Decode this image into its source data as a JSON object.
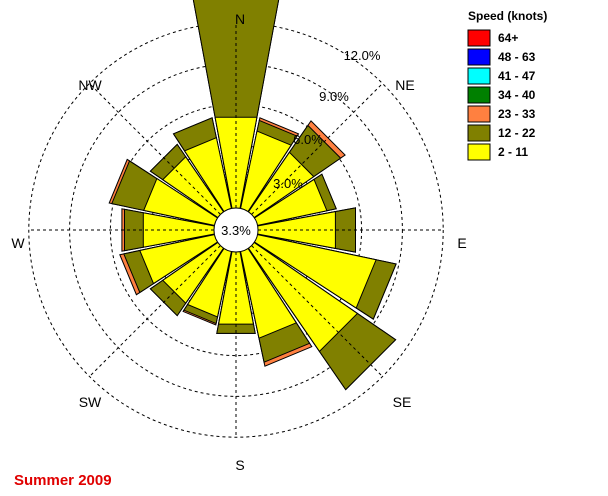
{
  "caption": "Summer 2009",
  "chart_data": {
    "type": "wind_rose",
    "calm_label": "3.3%",
    "ring_labels": [
      "3.0%",
      "6.0%",
      "9.0%",
      "12.0%"
    ],
    "ring_values": [
      3,
      6,
      9,
      12
    ],
    "directions": [
      "N",
      "NE",
      "E",
      "SE",
      "S",
      "SW",
      "W",
      "NW"
    ],
    "legend": {
      "title": "Speed (knots)",
      "classes": [
        {
          "label": "64+",
          "color": "#ff0000"
        },
        {
          "label": "48 - 63",
          "color": "#0000ff"
        },
        {
          "label": "41 - 47",
          "color": "#00ffff"
        },
        {
          "label": "34 - 40",
          "color": "#008000"
        },
        {
          "label": "23 - 33",
          "color": "#ff8040"
        },
        {
          "label": "12 - 22",
          "color": "#808000"
        },
        {
          "label": "2 - 11",
          "color": "#ffff00"
        }
      ]
    },
    "sectors_note": "16 compass sectors starting at N, clockwise; cumulative frequency (%) at outer edge of each speed band",
    "sectors": [
      {
        "dir": "N",
        "b2_11": 5.2,
        "b12_22": 14.4,
        "b23_33": 14.9
      },
      {
        "dir": "NNE",
        "b2_11": 4.2,
        "b12_22": 5.0,
        "b23_33": 5.2
      },
      {
        "dir": "NE",
        "b2_11": 3.7,
        "b12_22": 6.1,
        "b23_33": 6.5
      },
      {
        "dir": "ENE",
        "b2_11": 3.6,
        "b12_22": 4.3,
        "b23_33": 4.3
      },
      {
        "dir": "E",
        "b2_11": 4.2,
        "b12_22": 5.7,
        "b23_33": 5.7
      },
      {
        "dir": "ESE",
        "b2_11": 7.3,
        "b12_22": 8.8,
        "b23_33": 8.8
      },
      {
        "dir": "SE",
        "b2_11": 7.6,
        "b12_22": 11.0,
        "b23_33": 11.0
      },
      {
        "dir": "SSE",
        "b2_11": 4.9,
        "b12_22": 6.7,
        "b23_33": 7.0
      },
      {
        "dir": "S",
        "b2_11": 3.8,
        "b12_22": 4.5,
        "b23_33": 4.5
      },
      {
        "dir": "SSW",
        "b2_11": 3.3,
        "b12_22": 3.8,
        "b23_33": 3.9
      },
      {
        "dir": "SW",
        "b2_11": 3.3,
        "b12_22": 4.4,
        "b23_33": 4.4
      },
      {
        "dir": "WSW",
        "b2_11": 4.0,
        "b12_22": 5.2,
        "b23_33": 5.5
      },
      {
        "dir": "W",
        "b2_11": 3.7,
        "b12_22": 5.1,
        "b23_33": 5.3
      },
      {
        "dir": "WNW",
        "b2_11": 3.7,
        "b12_22": 6.1,
        "b23_33": 6.3
      },
      {
        "dir": "NW",
        "b2_11": 3.3,
        "b12_22": 4.4,
        "b23_33": 4.4
      },
      {
        "dir": "NNW",
        "b2_11": 3.7,
        "b12_22": 5.2,
        "b23_33": 5.2
      }
    ]
  }
}
